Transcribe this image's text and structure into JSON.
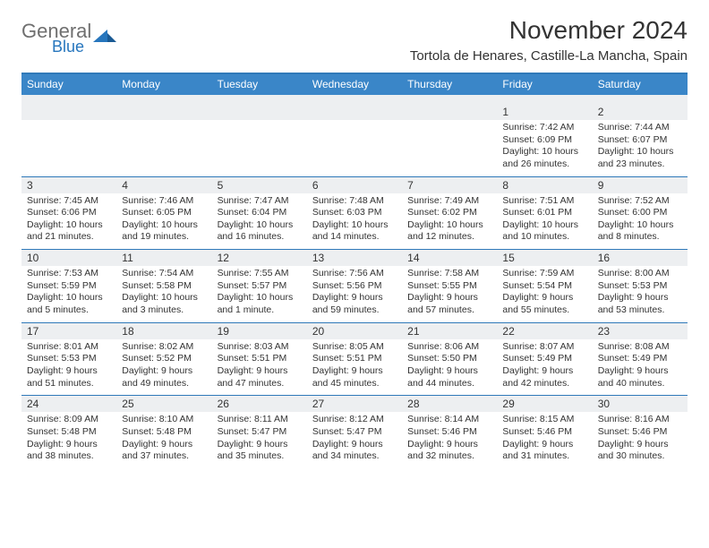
{
  "brand": {
    "general": "General",
    "blue": "Blue"
  },
  "title": "November 2024",
  "location": "Tortola de Henares, Castille-La Mancha, Spain",
  "colors": {
    "header_bar": "#3a86c8",
    "rule": "#2f79b9",
    "band": "#edeff1",
    "text": "#333333",
    "brand_blue": "#2776bd",
    "brand_gray": "#6f6f6f",
    "bg": "#ffffff"
  },
  "dow": [
    "Sunday",
    "Monday",
    "Tuesday",
    "Wednesday",
    "Thursday",
    "Friday",
    "Saturday"
  ],
  "weeks": [
    [
      {
        "n": "",
        "sr": "",
        "ss": "",
        "dl": ""
      },
      {
        "n": "",
        "sr": "",
        "ss": "",
        "dl": ""
      },
      {
        "n": "",
        "sr": "",
        "ss": "",
        "dl": ""
      },
      {
        "n": "",
        "sr": "",
        "ss": "",
        "dl": ""
      },
      {
        "n": "",
        "sr": "",
        "ss": "",
        "dl": ""
      },
      {
        "n": "1",
        "sr": "Sunrise: 7:42 AM",
        "ss": "Sunset: 6:09 PM",
        "dl": "Daylight: 10 hours and 26 minutes."
      },
      {
        "n": "2",
        "sr": "Sunrise: 7:44 AM",
        "ss": "Sunset: 6:07 PM",
        "dl": "Daylight: 10 hours and 23 minutes."
      }
    ],
    [
      {
        "n": "3",
        "sr": "Sunrise: 7:45 AM",
        "ss": "Sunset: 6:06 PM",
        "dl": "Daylight: 10 hours and 21 minutes."
      },
      {
        "n": "4",
        "sr": "Sunrise: 7:46 AM",
        "ss": "Sunset: 6:05 PM",
        "dl": "Daylight: 10 hours and 19 minutes."
      },
      {
        "n": "5",
        "sr": "Sunrise: 7:47 AM",
        "ss": "Sunset: 6:04 PM",
        "dl": "Daylight: 10 hours and 16 minutes."
      },
      {
        "n": "6",
        "sr": "Sunrise: 7:48 AM",
        "ss": "Sunset: 6:03 PM",
        "dl": "Daylight: 10 hours and 14 minutes."
      },
      {
        "n": "7",
        "sr": "Sunrise: 7:49 AM",
        "ss": "Sunset: 6:02 PM",
        "dl": "Daylight: 10 hours and 12 minutes."
      },
      {
        "n": "8",
        "sr": "Sunrise: 7:51 AM",
        "ss": "Sunset: 6:01 PM",
        "dl": "Daylight: 10 hours and 10 minutes."
      },
      {
        "n": "9",
        "sr": "Sunrise: 7:52 AM",
        "ss": "Sunset: 6:00 PM",
        "dl": "Daylight: 10 hours and 8 minutes."
      }
    ],
    [
      {
        "n": "10",
        "sr": "Sunrise: 7:53 AM",
        "ss": "Sunset: 5:59 PM",
        "dl": "Daylight: 10 hours and 5 minutes."
      },
      {
        "n": "11",
        "sr": "Sunrise: 7:54 AM",
        "ss": "Sunset: 5:58 PM",
        "dl": "Daylight: 10 hours and 3 minutes."
      },
      {
        "n": "12",
        "sr": "Sunrise: 7:55 AM",
        "ss": "Sunset: 5:57 PM",
        "dl": "Daylight: 10 hours and 1 minute."
      },
      {
        "n": "13",
        "sr": "Sunrise: 7:56 AM",
        "ss": "Sunset: 5:56 PM",
        "dl": "Daylight: 9 hours and 59 minutes."
      },
      {
        "n": "14",
        "sr": "Sunrise: 7:58 AM",
        "ss": "Sunset: 5:55 PM",
        "dl": "Daylight: 9 hours and 57 minutes."
      },
      {
        "n": "15",
        "sr": "Sunrise: 7:59 AM",
        "ss": "Sunset: 5:54 PM",
        "dl": "Daylight: 9 hours and 55 minutes."
      },
      {
        "n": "16",
        "sr": "Sunrise: 8:00 AM",
        "ss": "Sunset: 5:53 PM",
        "dl": "Daylight: 9 hours and 53 minutes."
      }
    ],
    [
      {
        "n": "17",
        "sr": "Sunrise: 8:01 AM",
        "ss": "Sunset: 5:53 PM",
        "dl": "Daylight: 9 hours and 51 minutes."
      },
      {
        "n": "18",
        "sr": "Sunrise: 8:02 AM",
        "ss": "Sunset: 5:52 PM",
        "dl": "Daylight: 9 hours and 49 minutes."
      },
      {
        "n": "19",
        "sr": "Sunrise: 8:03 AM",
        "ss": "Sunset: 5:51 PM",
        "dl": "Daylight: 9 hours and 47 minutes."
      },
      {
        "n": "20",
        "sr": "Sunrise: 8:05 AM",
        "ss": "Sunset: 5:51 PM",
        "dl": "Daylight: 9 hours and 45 minutes."
      },
      {
        "n": "21",
        "sr": "Sunrise: 8:06 AM",
        "ss": "Sunset: 5:50 PM",
        "dl": "Daylight: 9 hours and 44 minutes."
      },
      {
        "n": "22",
        "sr": "Sunrise: 8:07 AM",
        "ss": "Sunset: 5:49 PM",
        "dl": "Daylight: 9 hours and 42 minutes."
      },
      {
        "n": "23",
        "sr": "Sunrise: 8:08 AM",
        "ss": "Sunset: 5:49 PM",
        "dl": "Daylight: 9 hours and 40 minutes."
      }
    ],
    [
      {
        "n": "24",
        "sr": "Sunrise: 8:09 AM",
        "ss": "Sunset: 5:48 PM",
        "dl": "Daylight: 9 hours and 38 minutes."
      },
      {
        "n": "25",
        "sr": "Sunrise: 8:10 AM",
        "ss": "Sunset: 5:48 PM",
        "dl": "Daylight: 9 hours and 37 minutes."
      },
      {
        "n": "26",
        "sr": "Sunrise: 8:11 AM",
        "ss": "Sunset: 5:47 PM",
        "dl": "Daylight: 9 hours and 35 minutes."
      },
      {
        "n": "27",
        "sr": "Sunrise: 8:12 AM",
        "ss": "Sunset: 5:47 PM",
        "dl": "Daylight: 9 hours and 34 minutes."
      },
      {
        "n": "28",
        "sr": "Sunrise: 8:14 AM",
        "ss": "Sunset: 5:46 PM",
        "dl": "Daylight: 9 hours and 32 minutes."
      },
      {
        "n": "29",
        "sr": "Sunrise: 8:15 AM",
        "ss": "Sunset: 5:46 PM",
        "dl": "Daylight: 9 hours and 31 minutes."
      },
      {
        "n": "30",
        "sr": "Sunrise: 8:16 AM",
        "ss": "Sunset: 5:46 PM",
        "dl": "Daylight: 9 hours and 30 minutes."
      }
    ]
  ]
}
